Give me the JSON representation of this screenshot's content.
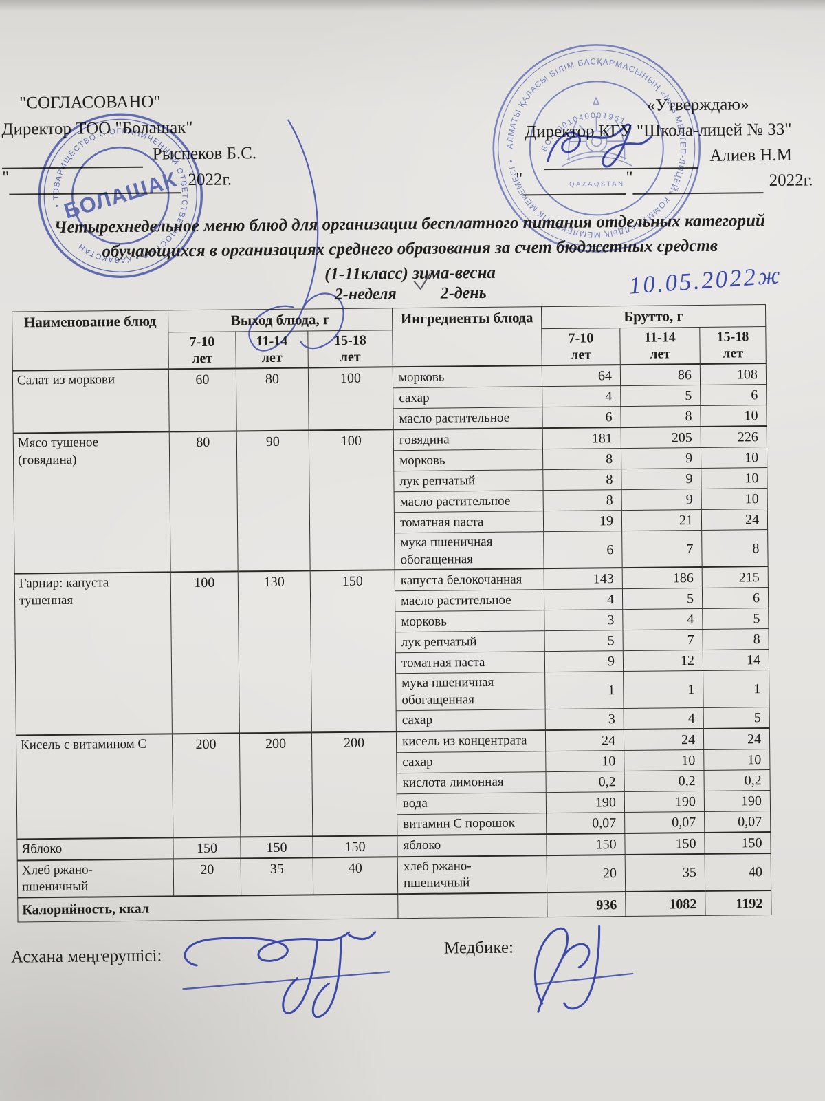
{
  "approval_left": {
    "title": "\"СОГЛАСОВАНО\"",
    "subtitle": "Директор ТОО \"Болашак\"",
    "name": "Рыспеков Б.С.",
    "year": "2022г.",
    "quote": "\""
  },
  "approval_right": {
    "title": "«Утверждаю»",
    "subtitle": "Директор КГУ \"Школа-лицей № 33\"",
    "name": "Алиев Н.М",
    "year": "2022г.",
    "quote_open": "\"",
    "quote_close": "\""
  },
  "stamps": {
    "left": {
      "center_text": "БОЛАШАК",
      "ring_text": "• ТОВАРИЩЕСТВО С ОГРАНИЧЕННОЙ ОТВЕТСТВЕННОСТЬЮ • ҚАЗАҚСТАН"
    },
    "right": {
      "ring_text": "АЛМАТЫ ҚАЛАСЫ БІЛІМ БАСҚАРМАСЫНЫҢ «№33 МЕКТЕП-ЛИЦЕЙ» КОММУНАЛДЫҚ МЕМЛЕКЕТТІК МЕКЕМЕСІ •",
      "bin_text": "БСН 001040001951",
      "country_text": "QAZAQSTAN"
    }
  },
  "title": {
    "line1": "Четырехнедельное меню блюд для организации бесплатного питания отдельных категорий",
    "line2": "обучающихся в организациях среднего образования за счет бюджетных средств",
    "line3": "(1-11класс) зима-весна"
  },
  "subtitle": {
    "week": "2-неделя",
    "day": "2-день",
    "handwritten_date": "10.05.2022ж"
  },
  "table": {
    "headers": {
      "name": "Наименование блюд",
      "output": "Выход блюда, г",
      "ingredients": "Ингредиенты блюда",
      "brutto": "Брутто, г"
    },
    "age_headers": [
      "7-10\nлет",
      "11-14\nлет",
      "15-18\nлет"
    ],
    "groups": [
      {
        "dish": "Салат из моркови",
        "out": [
          "60",
          "80",
          "100"
        ],
        "rows": [
          {
            "name": "морковь",
            "values": [
              "64",
              "86",
              "108"
            ]
          },
          {
            "name": "сахар",
            "values": [
              "4",
              "5",
              "6"
            ]
          },
          {
            "name": "масло растительное",
            "values": [
              "6",
              "8",
              "10"
            ]
          }
        ]
      },
      {
        "dish": "Мясо тушеное\n(говядина)",
        "out": [
          "80",
          "90",
          "100"
        ],
        "rows": [
          {
            "name": "говядина",
            "values": [
              "181",
              "205",
              "226"
            ]
          },
          {
            "name": "морковь",
            "values": [
              "8",
              "9",
              "10"
            ]
          },
          {
            "name": "лук репчатый",
            "values": [
              "8",
              "9",
              "10"
            ]
          },
          {
            "name": "масло растительное",
            "values": [
              "8",
              "9",
              "10"
            ]
          },
          {
            "name": "томатная паста",
            "values": [
              "19",
              "21",
              "24"
            ]
          },
          {
            "name": "мука пшеничная\nобогащенная",
            "values": [
              "6",
              "7",
              "8"
            ]
          }
        ]
      },
      {
        "dish": "Гарнир: капуста\nтушенная",
        "out": [
          "100",
          "130",
          "150"
        ],
        "rows": [
          {
            "name": "капуста белокочанная",
            "values": [
              "143",
              "186",
              "215"
            ]
          },
          {
            "name": "масло растительное",
            "values": [
              "4",
              "5",
              "6"
            ]
          },
          {
            "name": "морковь",
            "values": [
              "3",
              "4",
              "5"
            ]
          },
          {
            "name": "лук репчатый",
            "values": [
              "5",
              "7",
              "8"
            ]
          },
          {
            "name": "томатная паста",
            "values": [
              "9",
              "12",
              "14"
            ]
          },
          {
            "name": "мука пшеничная\nобогащенная",
            "values": [
              "1",
              "1",
              "1"
            ]
          },
          {
            "name": "сахар",
            "values": [
              "3",
              "4",
              "5"
            ]
          }
        ]
      },
      {
        "dish": "Кисель с витамином С",
        "out": [
          "200",
          "200",
          "200"
        ],
        "rows": [
          {
            "name": "кисель из концентрата",
            "values": [
              "24",
              "24",
              "24"
            ]
          },
          {
            "name": "сахар",
            "values": [
              "10",
              "10",
              "10"
            ]
          },
          {
            "name": "кислота лимонная",
            "values": [
              "0,2",
              "0,2",
              "0,2"
            ]
          },
          {
            "name": "вода",
            "values": [
              "190",
              "190",
              "190"
            ]
          },
          {
            "name": "витамин С порошок",
            "values": [
              "0,07",
              "0,07",
              "0,07"
            ]
          }
        ]
      },
      {
        "dish": "Яблоко",
        "out": [
          "150",
          "150",
          "150"
        ],
        "rows": [
          {
            "name": "яблоко",
            "values": [
              "150",
              "150",
              "150"
            ]
          }
        ]
      },
      {
        "dish": "Хлеб ржано-\nпшеничный",
        "out": [
          "20",
          "35",
          "40"
        ],
        "rows": [
          {
            "name": "хлеб ржано-\nпшеничный",
            "values": [
              "20",
              "35",
              "40"
            ]
          }
        ]
      }
    ],
    "footer": {
      "label": "Калорийность, ккал",
      "values": [
        "936",
        "1082",
        "1192"
      ]
    }
  },
  "signature_row": {
    "left_label": "Асхана меңгерушісі:",
    "right_label": "Медбике:"
  }
}
